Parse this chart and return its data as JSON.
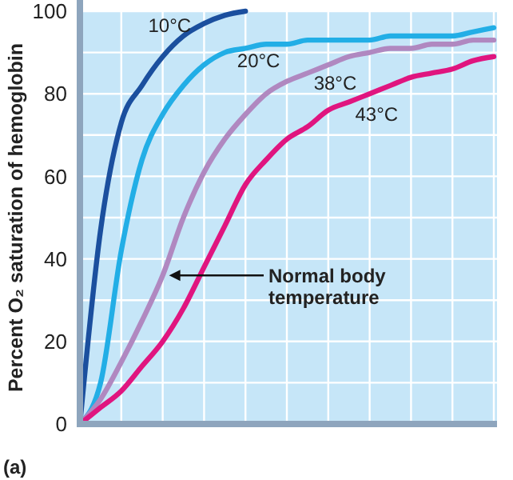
{
  "chart_data": {
    "type": "line",
    "ylabel": "Percent O₂ saturation of hemoglobin",
    "categories": [
      null,
      null,
      null,
      null,
      null,
      null,
      null,
      null,
      null,
      null,
      null,
      null,
      null,
      null,
      null,
      null,
      null,
      null,
      null,
      null,
      null
    ],
    "series": [
      {
        "name": "10°C",
        "color": "#1b4f9e",
        "values": [
          0,
          47,
          73,
          82,
          89,
          94,
          97,
          99,
          100,
          null,
          null,
          null,
          null,
          null,
          null,
          null,
          null,
          null,
          null,
          null,
          null
        ]
      },
      {
        "name": "20°C",
        "color": "#22aee6",
        "values": [
          0,
          10,
          42,
          64,
          75,
          82,
          87,
          90,
          91,
          92,
          92,
          93,
          93,
          93,
          93,
          94,
          94,
          94,
          94,
          95,
          96
        ]
      },
      {
        "name": "38°C",
        "color": "#b088c0",
        "values": [
          0,
          6,
          15,
          25,
          36,
          50,
          61,
          69,
          75,
          80,
          83,
          85,
          87,
          89,
          90,
          91,
          91,
          92,
          92,
          93,
          93
        ]
      },
      {
        "name": "43°C",
        "color": "#e0157f",
        "values": [
          0,
          4,
          8,
          14,
          20,
          28,
          38,
          48,
          58,
          64,
          69,
          72,
          76,
          78,
          80,
          82,
          84,
          85,
          86,
          88,
          89
        ]
      }
    ],
    "ylim": [
      0,
      100
    ],
    "yticks": [
      0,
      {
        "value": 10,
        "label": null
      },
      20,
      {
        "value": 30,
        "label": null
      },
      40,
      {
        "value": 50,
        "label": null
      },
      60,
      {
        "value": 70,
        "label": null
      },
      80,
      {
        "value": 90,
        "label": null
      },
      100
    ],
    "grid": true,
    "line_style": "solid",
    "marker": "none",
    "legend": false,
    "annotations": [
      "Normal body temperature",
      "(a)"
    ]
  }
}
